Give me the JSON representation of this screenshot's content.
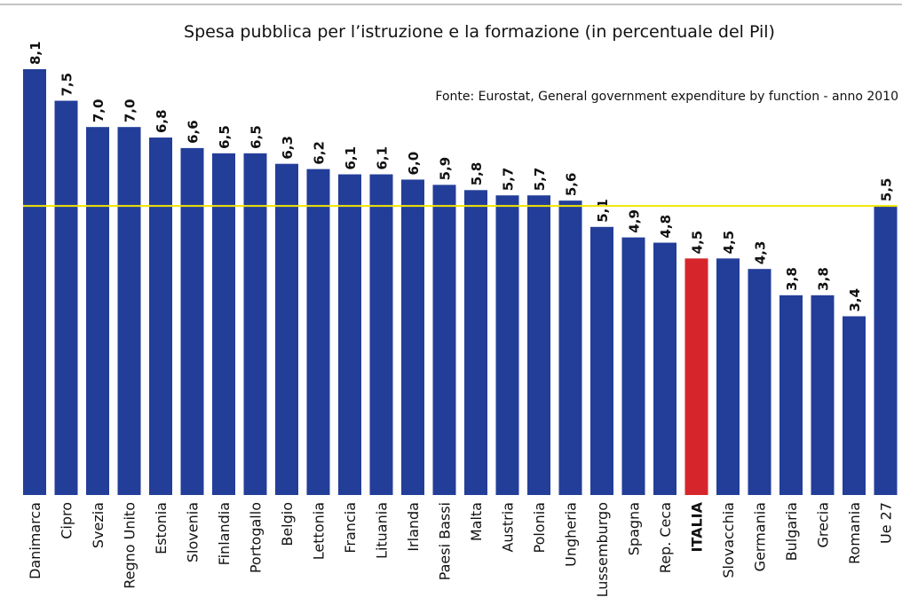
{
  "chart_data": {
    "type": "bar",
    "title": "Spesa pubblica per l’istruzione e la formazione (in percentuale del Pil)",
    "source": "Fonte: Eurostat, General government expenditure by function - anno 2010",
    "categories": [
      "Danimarca",
      "Cipro",
      "Svezia",
      "Regno Unito",
      "Estonia",
      "Slovenia",
      "Finlandia",
      "Portogallo",
      "Belgio",
      "Lettonia",
      "Francia",
      "Lituania",
      "Irlanda",
      "Paesi Bassi",
      "Malta",
      "Austria",
      "Polonia",
      "Ungheria",
      "Lussemburgo",
      "Spagna",
      "Rep. Ceca",
      "ITALIA",
      "Slovacchia",
      "Germania",
      "Bulgaria",
      "Grecia",
      "Romania",
      "Ue 27"
    ],
    "values": [
      8.1,
      7.5,
      7.0,
      7.0,
      6.8,
      6.6,
      6.5,
      6.5,
      6.3,
      6.2,
      6.1,
      6.1,
      6.0,
      5.9,
      5.8,
      5.7,
      5.7,
      5.6,
      5.1,
      4.9,
      4.8,
      4.5,
      4.5,
      4.3,
      3.8,
      3.8,
      3.4,
      5.5
    ],
    "value_labels": [
      "8,1",
      "7,5",
      "7,0",
      "7,0",
      "6,8",
      "6,6",
      "6,5",
      "6,5",
      "6,3",
      "6,2",
      "6,1",
      "6,1",
      "6,0",
      "5,9",
      "5,8",
      "5,7",
      "5,7",
      "5,6",
      "5,1",
      "4,9",
      "4,8",
      "4,5",
      "4,5",
      "4,3",
      "3,8",
      "3,8",
      "3,4",
      "5,5"
    ],
    "colors": [
      "#233e99",
      "#233e99",
      "#233e99",
      "#233e99",
      "#233e99",
      "#233e99",
      "#233e99",
      "#233e99",
      "#233e99",
      "#233e99",
      "#233e99",
      "#233e99",
      "#233e99",
      "#233e99",
      "#233e99",
      "#233e99",
      "#233e99",
      "#233e99",
      "#233e99",
      "#233e99",
      "#233e99",
      "#d7262b",
      "#233e99",
      "#233e99",
      "#233e99",
      "#233e99",
      "#233e99",
      "#233e99"
    ],
    "reference_line_color": "#f2e600"
  }
}
